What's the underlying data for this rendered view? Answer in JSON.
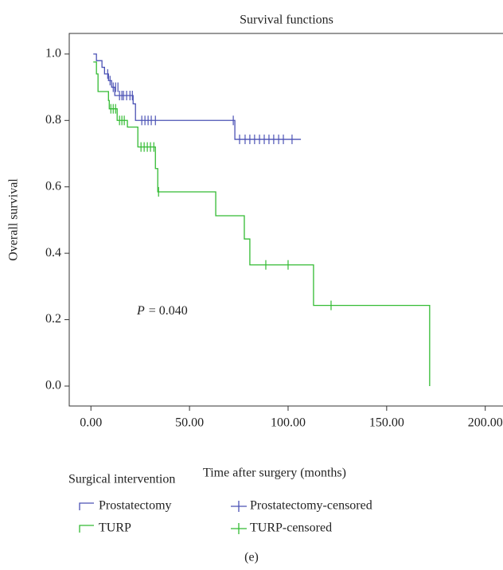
{
  "chart_data": {
    "type": "step",
    "title": "Survival functions",
    "x_label": "Time after surgery (months)",
    "y_label": "Overall survival",
    "annotation_symbol": "P",
    "annotation_value": "= 0.040",
    "legend_title": "Surgical intervention",
    "caption": "(e)",
    "xlim": [
      -11,
      209
    ],
    "ylim": [
      -0.06,
      1.062
    ],
    "xticks": [
      {
        "value": 0,
        "label": "0.00"
      },
      {
        "value": 50,
        "label": "50.00"
      },
      {
        "value": 100,
        "label": "100.00"
      },
      {
        "value": 150,
        "label": "150.00"
      },
      {
        "value": 200,
        "label": "200.00"
      }
    ],
    "yticks": [
      {
        "value": 0,
        "label": "0.0"
      },
      0.2,
      0.4,
      0.6,
      0.8,
      {
        "value": 1,
        "label": "1.0"
      }
    ],
    "series": [
      {
        "name": "Prostatectomy",
        "color": "#4b52b5",
        "marker": "step",
        "x": [
          1.2,
          2.8,
          5.6,
          6.9,
          8.9,
          10.5,
          12.1,
          21.4,
          22.6,
          73,
          106.5
        ],
        "values": [
          1.0,
          0.98,
          0.96,
          0.94,
          0.92,
          0.9,
          0.875,
          0.85,
          0.8,
          0.743,
          0.743
        ]
      },
      {
        "name": "TURP",
        "color": "#33bb33",
        "marker": "step",
        "x": [
          1.2,
          2.8,
          3.6,
          8.9,
          9.3,
          13.3,
          18.5,
          23.8,
          32.7,
          33.9,
          63.3,
          77.8,
          80.6,
          112.9,
          171.8
        ],
        "values": [
          0.976,
          0.94,
          0.887,
          0.86,
          0.835,
          0.8,
          0.78,
          0.72,
          0.655,
          0.585,
          0.513,
          0.443,
          0.365,
          0.243,
          0.0
        ]
      },
      {
        "name": "Prostatectomy-censored",
        "color": "#4b52b5",
        "marker": "plus",
        "x": [
          8.5,
          9.7,
          11.3,
          12.5,
          13.7,
          14.5,
          15.7,
          16.5,
          18.1,
          19.8,
          21,
          25.8,
          27.4,
          29,
          30.6,
          32.7,
          72.2,
          75.4,
          78.2,
          80.6,
          83,
          85.5,
          87.9,
          90.3,
          92.7,
          95.2,
          97.6,
          102
        ],
        "values": [
          0.94,
          0.92,
          0.9,
          0.9,
          0.9,
          0.875,
          0.875,
          0.875,
          0.875,
          0.875,
          0.875,
          0.8,
          0.8,
          0.8,
          0.8,
          0.8,
          0.8,
          0.743,
          0.743,
          0.743,
          0.743,
          0.743,
          0.743,
          0.743,
          0.743,
          0.743,
          0.743,
          0.743
        ]
      },
      {
        "name": "TURP-censored",
        "color": "#33bb33",
        "marker": "plus",
        "x": [
          10.1,
          11.3,
          12.5,
          14.5,
          15.7,
          16.9,
          25.4,
          27,
          28.6,
          30.2,
          31.9,
          34.3,
          88.7,
          100,
          121.8
        ],
        "values": [
          0.835,
          0.835,
          0.835,
          0.8,
          0.8,
          0.8,
          0.72,
          0.72,
          0.72,
          0.72,
          0.72,
          0.585,
          0.365,
          0.365,
          0.243
        ]
      }
    ]
  }
}
